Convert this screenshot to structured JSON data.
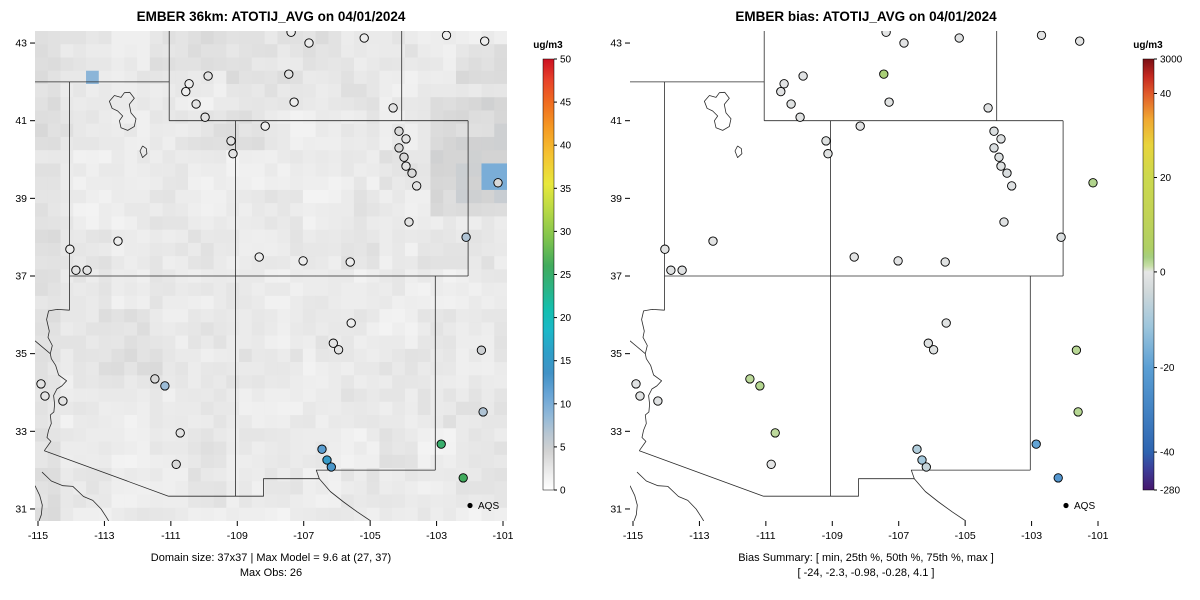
{
  "panels": [
    {
      "id": "model",
      "title": "EMBER 36km: ATOTIJ_AVG on 04/01/2024",
      "caption_line1": "Domain size: 37x37 | Max Model = 9.6 at (27, 37)",
      "caption_line2": "Max Obs: 26",
      "legend_label": "AQS",
      "colorbar": {
        "unit": "ug/m3",
        "unit_color": "#3d3d99",
        "ticks": [
          {
            "label": "0",
            "f": 0
          },
          {
            "label": "5",
            "f": 0.1
          },
          {
            "label": "10",
            "f": 0.2
          },
          {
            "label": "15",
            "f": 0.3
          },
          {
            "label": "20",
            "f": 0.4
          },
          {
            "label": "25",
            "f": 0.5
          },
          {
            "label": "30",
            "f": 0.6
          },
          {
            "label": "35",
            "f": 0.7
          },
          {
            "label": "40",
            "f": 0.8
          },
          {
            "label": "45",
            "f": 0.9
          },
          {
            "label": "50",
            "f": 1
          }
        ]
      }
    },
    {
      "id": "bias",
      "title": "EMBER bias: ATOTIJ_AVG on 04/01/2024",
      "caption_line1": "Bias Summary: [ min, 25th %, 50th %, 75th %, max ]",
      "caption_line2": "[ -24,  -2.3,  -0.98,  -0.28,  4.1 ]",
      "legend_label": "AQS",
      "colorbar": {
        "unit": "ug/m3",
        "unit_color": "#3d3d99",
        "ticks": [
          {
            "label": "3000",
            "f": 1
          },
          {
            "label": "40",
            "f": 0.92
          },
          {
            "label": "20",
            "f": 0.725
          },
          {
            "label": "0",
            "f": 0.506
          },
          {
            "label": "-20",
            "f": 0.284
          },
          {
            "label": "-40",
            "f": 0.088
          },
          {
            "label": "-280",
            "f": 0
          }
        ]
      }
    }
  ],
  "axes": {
    "x_ticks": [
      -115,
      -113,
      -111,
      -109,
      -107,
      -105,
      -103,
      -101
    ],
    "y_ticks": [
      31,
      33,
      35,
      37,
      39,
      41,
      43
    ]
  },
  "chart_data": {
    "type": "scatter",
    "description": "Side-by-side model concentration map (gridded raster + AQS station circles) and model bias map for ATOTIJ_AVG on 04/01/2024 over the US Southwest.",
    "xlim": [
      -115.09,
      -100.88
    ],
    "ylim": [
      30.69,
      43.31
    ],
    "domain_size": "37x37",
    "max_model": {
      "value": 9.6,
      "cell": [
        27,
        37
      ]
    },
    "max_obs": 26,
    "bias_summary": {
      "min": -24,
      "p25": -2.3,
      "p50": -0.98,
      "p75": -0.28,
      "max": 4.1
    },
    "colormap_model": {
      "domain": [
        0,
        50
      ],
      "stops": [
        [
          0,
          "#ffffff"
        ],
        [
          0.05,
          "#e8e8e8"
        ],
        [
          0.09,
          "#d2d2d2"
        ],
        [
          0.13,
          "#b8c6d2"
        ],
        [
          0.17,
          "#93b9d8"
        ],
        [
          0.22,
          "#6aa5d6"
        ],
        [
          0.27,
          "#4292c6"
        ],
        [
          0.32,
          "#2e9fc8"
        ],
        [
          0.37,
          "#1cb8c8"
        ],
        [
          0.42,
          "#14bfae"
        ],
        [
          0.47,
          "#2db383"
        ],
        [
          0.52,
          "#41ab5d"
        ],
        [
          0.58,
          "#7cc24e"
        ],
        [
          0.65,
          "#b8d945"
        ],
        [
          0.71,
          "#e8e83c"
        ],
        [
          0.78,
          "#f5c131"
        ],
        [
          0.84,
          "#f59a23"
        ],
        [
          0.9,
          "#ef6b20"
        ],
        [
          0.95,
          "#e8432a"
        ],
        [
          1,
          "#cc1122"
        ]
      ]
    },
    "colormap_bias": {
      "value_knots": [
        -280,
        -40,
        40,
        3000
      ],
      "fraction_knots": [
        0,
        0.088,
        0.92,
        1
      ],
      "stops": [
        [
          0,
          "#46166c"
        ],
        [
          0.05,
          "#3c3f9a"
        ],
        [
          0.088,
          "#2e64b0"
        ],
        [
          0.19,
          "#4484c4"
        ],
        [
          0.284,
          "#5b9fd4"
        ],
        [
          0.38,
          "#9ec6dc"
        ],
        [
          0.46,
          "#d0d8da"
        ],
        [
          0.506,
          "#e6e6e6"
        ],
        [
          0.52,
          "#c6dea6"
        ],
        [
          0.54,
          "#a6cf80"
        ],
        [
          0.56,
          "#aecf66"
        ],
        [
          0.64,
          "#c2d356"
        ],
        [
          0.725,
          "#ccd94e"
        ],
        [
          0.8,
          "#e8d43c"
        ],
        [
          0.86,
          "#f0a832"
        ],
        [
          0.92,
          "#e05a2b"
        ],
        [
          0.96,
          "#c42820"
        ],
        [
          1,
          "#7a0f14"
        ]
      ]
    },
    "model_raster": {
      "nx": 37,
      "ny": 37,
      "base": 1.2,
      "block_amp": 1.1,
      "cell_amp": 1.1,
      "patches": [
        {
          "lon": [
            -103.3,
            -100.88
          ],
          "lat": [
            38.7,
            41.6
          ],
          "add": 1.7
        },
        {
          "lon": [
            -102.6,
            -100.88
          ],
          "lat": [
            39.0,
            40.6
          ],
          "add": 0.9
        },
        {
          "lon": [
            -102.6,
            -100.88
          ],
          "lat": [
            41.8,
            43.0
          ],
          "add": 1.2
        },
        {
          "lon": [
            -115.09,
            -114.15
          ],
          "lat": [
            30.69,
            43.31
          ],
          "add": 0.8
        },
        {
          "lon": [
            -111.6,
            -106.3
          ],
          "lat": [
            41.9,
            43.31
          ],
          "add": 0.6
        },
        {
          "lon": [
            -110.2,
            -107.9
          ],
          "lat": [
            40.2,
            41.4
          ],
          "add": 0.5
        },
        {
          "lon": [
            -113.0,
            -111.4
          ],
          "lat": [
            34.4,
            36.0
          ],
          "add": 0.5
        },
        {
          "lon": [
            -106.7,
            -105.8
          ],
          "lat": [
            34.9,
            36.1
          ],
          "add": 0.4
        },
        {
          "lon": [
            -113.55,
            -113.1
          ],
          "lat": [
            42.0,
            42.45
          ],
          "set": 9
        },
        {
          "lon": [
            -101.5,
            -100.88
          ],
          "lat": [
            39.2,
            39.8
          ],
          "set": 10
        }
      ]
    },
    "stations": [
      {
        "lon": -107.38,
        "lat": 43.28,
        "obs": 2,
        "bias": -0.5
      },
      {
        "lon": -106.84,
        "lat": 43.0,
        "obs": 2,
        "bias": -0.6
      },
      {
        "lon": -105.18,
        "lat": 43.13,
        "obs": 2,
        "bias": -1
      },
      {
        "lon": -102.7,
        "lat": 43.2,
        "obs": 2,
        "bias": -0.4
      },
      {
        "lon": -101.55,
        "lat": 43.05,
        "obs": 2,
        "bias": -0.5
      },
      {
        "lon": -107.45,
        "lat": 42.2,
        "obs": 3,
        "bias": 4.1
      },
      {
        "lon": -109.88,
        "lat": 42.15,
        "obs": 3,
        "bias": -1
      },
      {
        "lon": -110.45,
        "lat": 41.95,
        "obs": 2,
        "bias": -0.7
      },
      {
        "lon": -110.55,
        "lat": 41.75,
        "obs": 2,
        "bias": -0.6
      },
      {
        "lon": -110.24,
        "lat": 41.43,
        "obs": 3,
        "bias": -1.2
      },
      {
        "lon": -109.97,
        "lat": 41.09,
        "obs": 3,
        "bias": -0.9
      },
      {
        "lon": -107.29,
        "lat": 41.48,
        "obs": 2,
        "bias": -0.8
      },
      {
        "lon": -108.16,
        "lat": 40.86,
        "obs": 2,
        "bias": -0.6
      },
      {
        "lon": -109.19,
        "lat": 40.48,
        "obs": 3,
        "bias": -1.5
      },
      {
        "lon": -109.13,
        "lat": 40.15,
        "obs": 3,
        "bias": -1.1
      },
      {
        "lon": -104.31,
        "lat": 41.33,
        "obs": 3,
        "bias": -1.3
      },
      {
        "lon": -104.13,
        "lat": 40.73,
        "obs": 4,
        "bias": -2
      },
      {
        "lon": -103.92,
        "lat": 40.53,
        "obs": 3,
        "bias": -1.6
      },
      {
        "lon": -104.13,
        "lat": 40.3,
        "obs": 4,
        "bias": -2.2
      },
      {
        "lon": -103.98,
        "lat": 40.06,
        "obs": 4,
        "bias": -1.8
      },
      {
        "lon": -103.92,
        "lat": 39.83,
        "obs": 3,
        "bias": -1.2
      },
      {
        "lon": -103.74,
        "lat": 39.65,
        "obs": 4,
        "bias": -2.5
      },
      {
        "lon": -103.6,
        "lat": 39.32,
        "obs": 3,
        "bias": -1.4
      },
      {
        "lon": -101.15,
        "lat": 39.4,
        "obs": 4,
        "bias": 2.8
      },
      {
        "lon": -103.83,
        "lat": 38.39,
        "obs": 3,
        "bias": -1
      },
      {
        "lon": -102.11,
        "lat": 38.0,
        "obs": 7,
        "bias": -2
      },
      {
        "lon": -108.34,
        "lat": 37.49,
        "obs": 2,
        "bias": -0.5
      },
      {
        "lon": -107.02,
        "lat": 37.39,
        "obs": 2,
        "bias": -0.6
      },
      {
        "lon": -105.6,
        "lat": 37.36,
        "obs": 2,
        "bias": -0.8
      },
      {
        "lon": -112.59,
        "lat": 37.9,
        "obs": 2,
        "bias": -0.4
      },
      {
        "lon": -114.04,
        "lat": 37.69,
        "obs": 2,
        "bias": -0.5
      },
      {
        "lon": -113.86,
        "lat": 37.15,
        "obs": 3,
        "bias": -1
      },
      {
        "lon": -113.52,
        "lat": 37.15,
        "obs": 3,
        "bias": -1
      },
      {
        "lon": -105.57,
        "lat": 35.79,
        "obs": 2,
        "bias": -0.9
      },
      {
        "lon": -106.11,
        "lat": 35.27,
        "obs": 3,
        "bias": -1.5
      },
      {
        "lon": -105.95,
        "lat": 35.1,
        "obs": 3,
        "bias": -1.2
      },
      {
        "lon": -101.65,
        "lat": 35.09,
        "obs": 5,
        "bias": 2.4
      },
      {
        "lon": -111.48,
        "lat": 34.35,
        "obs": 4,
        "bias": 2.2
      },
      {
        "lon": -111.18,
        "lat": 34.17,
        "obs": 8,
        "bias": 2.6
      },
      {
        "lon": -114.91,
        "lat": 34.22,
        "obs": 3,
        "bias": -1
      },
      {
        "lon": -114.79,
        "lat": 33.91,
        "obs": 3,
        "bias": -0.8
      },
      {
        "lon": -114.25,
        "lat": 33.78,
        "obs": 3,
        "bias": -1
      },
      {
        "lon": -101.6,
        "lat": 33.5,
        "obs": 7,
        "bias": 2.5
      },
      {
        "lon": -110.72,
        "lat": 32.96,
        "obs": 3,
        "bias": 2.0
      },
      {
        "lon": -110.84,
        "lat": 32.15,
        "obs": 4,
        "bias": -0.5
      },
      {
        "lon": -106.45,
        "lat": 32.54,
        "obs": 12,
        "bias": -9
      },
      {
        "lon": -106.3,
        "lat": 32.26,
        "obs": 15,
        "bias": -11
      },
      {
        "lon": -106.17,
        "lat": 32.08,
        "obs": 13,
        "bias": -6
      },
      {
        "lon": -102.86,
        "lat": 32.67,
        "obs": 25,
        "bias": -20
      },
      {
        "lon": -102.2,
        "lat": 31.8,
        "obs": 26,
        "bias": -24
      }
    ],
    "borders": [
      [
        [
          -115.09,
          42
        ],
        [
          -111.05,
          42
        ]
      ],
      [
        [
          -111.05,
          43.31
        ],
        [
          -111.05,
          41
        ]
      ],
      [
        [
          -111.05,
          41
        ],
        [
          -102.05,
          41
        ]
      ],
      [
        [
          -104.05,
          43.31
        ],
        [
          -104.05,
          41
        ]
      ],
      [
        [
          -114.05,
          42
        ],
        [
          -114.05,
          36.12
        ]
      ],
      [
        [
          -114.05,
          36.12
        ],
        [
          -114.42,
          36.14
        ],
        [
          -114.68,
          36.1
        ],
        [
          -114.74,
          35.88
        ],
        [
          -114.66,
          35.58
        ],
        [
          -114.7,
          35.42
        ],
        [
          -114.57,
          35.21
        ],
        [
          -114.63,
          35.0
        ],
        [
          -114.6,
          34.87
        ],
        [
          -114.47,
          34.7
        ],
        [
          -114.38,
          34.45
        ],
        [
          -114.14,
          34.3
        ],
        [
          -114.28,
          34.17
        ],
        [
          -114.43,
          34.09
        ],
        [
          -114.53,
          33.92
        ],
        [
          -114.5,
          33.7
        ],
        [
          -114.52,
          33.5
        ],
        [
          -114.63,
          33.42
        ],
        [
          -114.6,
          33.2
        ],
        [
          -114.68,
          33.03
        ],
        [
          -114.73,
          32.84
        ],
        [
          -114.61,
          32.74
        ],
        [
          -114.81,
          32.5
        ]
      ],
      [
        [
          -114.63,
          35.0
        ],
        [
          -115.09,
          35.33
        ]
      ],
      [
        [
          -114.81,
          32.5
        ],
        [
          -111.07,
          31.33
        ]
      ],
      [
        [
          -111.07,
          31.33
        ],
        [
          -108.21,
          31.33
        ],
        [
          -108.21,
          31.78
        ],
        [
          -106.53,
          31.78
        ],
        [
          -106.62,
          32.0
        ],
        [
          -103.04,
          32.0
        ]
      ],
      [
        [
          -106.53,
          31.78
        ],
        [
          -106.2,
          31.45
        ],
        [
          -105.8,
          31.18
        ],
        [
          -105.38,
          30.92
        ],
        [
          -104.98,
          30.69
        ]
      ],
      [
        [
          -103.04,
          37
        ],
        [
          -103.04,
          32.0
        ]
      ],
      [
        [
          -114.05,
          37
        ],
        [
          -102.05,
          37
        ]
      ],
      [
        [
          -109.05,
          41
        ],
        [
          -109.05,
          31.33
        ]
      ],
      [
        [
          -102.05,
          41
        ],
        [
          -102.05,
          37
        ]
      ],
      [
        [
          -114.88,
          31.95
        ],
        [
          -114.6,
          31.72
        ],
        [
          -114.25,
          31.6
        ],
        [
          -113.95,
          31.58
        ],
        [
          -113.63,
          31.32
        ],
        [
          -113.35,
          31.22
        ],
        [
          -113.1,
          31.0
        ],
        [
          -112.95,
          30.8
        ],
        [
          -112.87,
          30.69
        ]
      ],
      [
        [
          -115.09,
          31.6
        ],
        [
          -114.95,
          31.35
        ],
        [
          -114.87,
          31.1
        ],
        [
          -114.9,
          30.85
        ],
        [
          -114.97,
          30.69
        ]
      ]
    ],
    "lakes": [
      [
        [
          -112.24,
          41.73
        ],
        [
          -112.1,
          41.58
        ],
        [
          -112.25,
          41.42
        ],
        [
          -112.2,
          41.2
        ],
        [
          -112.05,
          41.05
        ],
        [
          -112.1,
          40.85
        ],
        [
          -112.3,
          40.75
        ],
        [
          -112.5,
          40.82
        ],
        [
          -112.55,
          41.0
        ],
        [
          -112.45,
          41.12
        ],
        [
          -112.6,
          41.25
        ],
        [
          -112.77,
          41.32
        ],
        [
          -112.85,
          41.5
        ],
        [
          -112.7,
          41.65
        ],
        [
          -112.5,
          41.6
        ],
        [
          -112.4,
          41.72
        ],
        [
          -112.24,
          41.73
        ]
      ],
      [
        [
          -111.85,
          40.35
        ],
        [
          -111.74,
          40.28
        ],
        [
          -111.72,
          40.15
        ],
        [
          -111.85,
          40.05
        ],
        [
          -111.93,
          40.22
        ],
        [
          -111.85,
          40.35
        ]
      ]
    ]
  }
}
